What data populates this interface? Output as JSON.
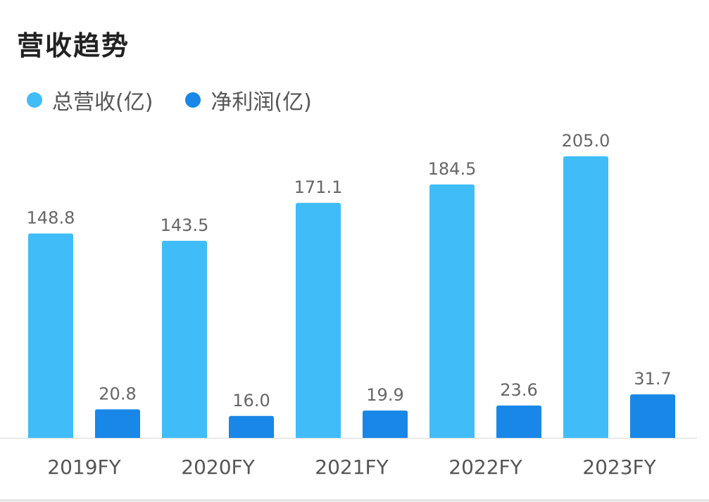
{
  "title": "营收趋势",
  "legend": [
    {
      "label": "总营收(亿)",
      "color": "#40BDF8"
    },
    {
      "label": "净利润(亿)",
      "color": "#1887E8"
    }
  ],
  "chart_data": {
    "type": "bar",
    "title": "营收趋势",
    "xlabel": "",
    "ylabel": "",
    "categories": [
      "2019FY",
      "2020FY",
      "2021FY",
      "2022FY",
      "2023FY"
    ],
    "series": [
      {
        "name": "总营收(亿)",
        "color": "#40BDF8",
        "values": [
          148.8,
          143.5,
          171.1,
          184.5,
          205.0
        ],
        "labels": [
          "148.8",
          "143.5",
          "171.1",
          "184.5",
          "205.0"
        ]
      },
      {
        "name": "净利润(亿)",
        "color": "#1887E8",
        "values": [
          20.8,
          16.0,
          19.9,
          23.6,
          31.7
        ],
        "labels": [
          "20.8",
          "16.0",
          "19.9",
          "23.6",
          "31.7"
        ]
      }
    ],
    "ylim": [
      0,
      205.0
    ],
    "grid": false,
    "legend_position": "top-left"
  }
}
